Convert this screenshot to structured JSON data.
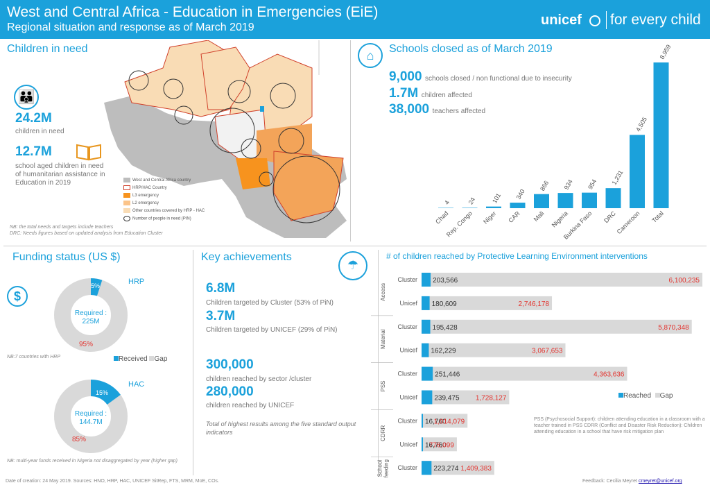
{
  "header": {
    "title": "West and Central Africa - Education in Emergencies (EiE)",
    "subtitle": "Regional situation and response as of March 2019",
    "logo_word": "unicef",
    "logo_tagline": "for every child"
  },
  "children_in_need": {
    "title": "Children in need",
    "value1": "24.2M",
    "label1": "children in need",
    "value2": "12.7M",
    "label2": "school aged children in need of humanitarian assistance in Education in 2019",
    "legend": [
      "West and Central Africa country",
      "HRP/HAC Country",
      "L3 emergency",
      "L2 emergency",
      "Other countries covered by HRP - HAC",
      "Number of people in need (PIN)"
    ],
    "footnote1": "NB: the total needs and targets include teachers",
    "footnote2": "DRC: Needs figures based on updated analysis from Education Cluster"
  },
  "schools_closed": {
    "title": "Schools closed as of March 2019",
    "stat1_value": "9,000",
    "stat1_label": "schools closed / non functional  due to insecurity",
    "stat2_value": "1.7M",
    "stat2_label": "children affected",
    "stat3_value": "38,000",
    "stat3_label": "teachers affected"
  },
  "funding": {
    "title": "Funding status (US $)",
    "hrp_label": "HRP",
    "hrp_received_pct": "5%",
    "hrp_gap_pct": "95%",
    "hrp_required": "Required :",
    "hrp_required_value": "225M",
    "hrp_note": "NB:7 countries with HRP",
    "legend_received": "Received",
    "legend_gap": "Gap",
    "hac_label": "HAC",
    "hac_received_pct": "15%",
    "hac_gap_pct": "85%",
    "hac_required": "Required :",
    "hac_required_value": "144.7M",
    "hac_note": "NB: multi-year funds received in Nigeria not disaggregated by year (higher gap)",
    "hrp_received_fraction": 0.05,
    "hac_received_fraction": 0.15
  },
  "achievements": {
    "title": "Key achievements",
    "v1": "6.8M",
    "l1": "Children targeted by Cluster (53% of PiN)",
    "v2": "3.7M",
    "l2": "Children targeted by UNICEF (29% of PiN)",
    "v3": "300,000",
    "l3": "children reached by sector /cluster",
    "v4": "280,000",
    "l4": "children reached by UNICEF",
    "note": "Total of highest results among the five standard output indicators"
  },
  "footer": {
    "left": "Date of creation: 24 May 2019. Sources: HNO, HRP, HAC, UNICEF SitRep, FTS, MRM, MoE, COs.",
    "right_prefix": "Feedback: Cecilia Meyret",
    "right_email": "cmeyret@unicef.org"
  },
  "colors": {
    "accent": "#1ba1db",
    "gap": "#d9d9d9",
    "gap_label": "#e3342f",
    "l3": "#f7931e",
    "l2": "#fbc48a"
  },
  "chart_data": [
    {
      "type": "bar",
      "categories": [
        "Chad",
        "Rep. Congo",
        "Niger",
        "CAR",
        "Mali",
        "Nigeria",
        "Burkina Faso",
        "DRC",
        "Cameroon",
        "Total"
      ],
      "values": [
        4,
        24,
        101,
        340,
        866,
        934,
        954,
        1231,
        4505,
        8959
      ],
      "value_labels": [
        "4",
        "24",
        "101",
        "340",
        "866",
        "934",
        "954",
        "1,231",
        "4,505",
        "8,959"
      ],
      "ylim": [
        0,
        8959
      ],
      "grid": false,
      "legend": "none"
    },
    {
      "type": "bar",
      "title": "# of children reached by Protective Learning Environment interventions",
      "orientation": "horizontal",
      "stacked": true,
      "rows": [
        {
          "group": "Access",
          "actor": "Cluster",
          "reached": 203566,
          "gap": 6100235,
          "reached_label": "203,566",
          "gap_label": "6,100,235"
        },
        {
          "group": "Access",
          "actor": "Unicef",
          "reached": 180609,
          "gap": 2746178,
          "reached_label": "180,609",
          "gap_label": "2,746,178"
        },
        {
          "group": "Material",
          "actor": "Cluster",
          "reached": 195428,
          "gap": 5870348,
          "reached_label": "195,428",
          "gap_label": "5,870,348"
        },
        {
          "group": "Material",
          "actor": "Unicef",
          "reached": 162229,
          "gap": 3067653,
          "reached_label": "162,229",
          "gap_label": "3,067,653"
        },
        {
          "group": "PSS",
          "actor": "Cluster",
          "reached": 251446,
          "gap": 4363636,
          "reached_label": "251,446",
          "gap_label": "4,363,636"
        },
        {
          "group": "PSS",
          "actor": "Unicef",
          "reached": 239475,
          "gap": 1728127,
          "reached_label": "239,475",
          "gap_label": "1,728,127"
        },
        {
          "group": "CDRR",
          "actor": "Cluster",
          "reached": 16760,
          "gap": 1014079,
          "reached_label": "16,760",
          "gap_label": "1,014,079"
        },
        {
          "group": "CDRR",
          "actor": "Unicef",
          "reached": 16760,
          "gap": 776099,
          "reached_label": "16,760",
          "gap_label": "776,099"
        },
        {
          "group": "School feeding",
          "actor": "Cluster",
          "reached": 223274,
          "gap": 1409383,
          "reached_label": "223,274",
          "gap_label": "1,409,383"
        }
      ],
      "series": [
        {
          "name": "Reached"
        },
        {
          "name": "Gap"
        }
      ],
      "legend": "right",
      "note": "PSS (Psychosocial Support): children attending education in a classroom with a teacher trained in PSS CDRR (Conflict and Disaster Risk Reduction): Children attending education in a school that have risk mitigation plan"
    }
  ]
}
